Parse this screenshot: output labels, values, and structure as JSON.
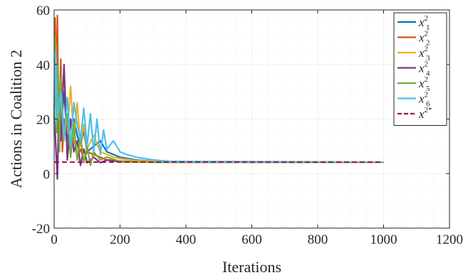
{
  "chart_data": {
    "type": "line",
    "xlabel": "Iterations",
    "ylabel": "Actions in Coalition 2",
    "xlim": [
      0,
      1200
    ],
    "ylim": [
      -20,
      60
    ],
    "xticks": [
      0,
      200,
      400,
      600,
      800,
      1000,
      1200
    ],
    "yticks": [
      -20,
      0,
      20,
      40,
      60
    ],
    "xtick_labels": [
      "0",
      "200",
      "400",
      "600",
      "800",
      "1000",
      "1200"
    ],
    "ytick_labels": [
      "-20",
      "0",
      "20",
      "40",
      "60"
    ],
    "grid": "major and minor, dotted",
    "legend_position": "top-right",
    "equilibrium_value": 4.2,
    "x_end": 1000,
    "series": [
      {
        "name": "x",
        "sub": "1",
        "sup": "2",
        "color": "#0072BD",
        "style": "solid",
        "x": [
          0,
          5,
          10,
          20,
          30,
          40,
          50,
          60,
          70,
          80,
          90,
          100,
          120,
          140,
          160,
          180,
          200,
          250,
          300,
          350,
          400,
          500,
          1000
        ],
        "y": [
          22,
          35,
          28,
          15,
          30,
          12,
          18,
          20,
          14,
          10,
          16,
          8,
          10,
          12,
          8,
          7,
          6,
          5,
          4.5,
          4.3,
          4.2,
          4.2,
          4.2
        ]
      },
      {
        "name": "x",
        "sub": "2",
        "sup": "2",
        "color": "#D95319",
        "style": "solid",
        "x": [
          0,
          3,
          6,
          10,
          14,
          20,
          25,
          30,
          40,
          50,
          60,
          70,
          80,
          90,
          100,
          120,
          140,
          160,
          180,
          200,
          250,
          300,
          400,
          1000
        ],
        "y": [
          20,
          57,
          30,
          58,
          10,
          42,
          8,
          20,
          12,
          10,
          14,
          6,
          9,
          5,
          8,
          7,
          6,
          5,
          4.8,
          4.6,
          4.4,
          4.2,
          4.2,
          4.2
        ]
      },
      {
        "name": "x",
        "sub": "3",
        "sup": "2",
        "color": "#EDB120",
        "style": "solid",
        "x": [
          0,
          5,
          10,
          20,
          30,
          40,
          50,
          60,
          70,
          80,
          90,
          100,
          120,
          140,
          160,
          180,
          200,
          250,
          300,
          400,
          1000
        ],
        "y": [
          30,
          48,
          20,
          25,
          38,
          15,
          32,
          12,
          26,
          10,
          18,
          9,
          14,
          8,
          7,
          6,
          5.5,
          4.8,
          4.5,
          4.2,
          4.2
        ]
      },
      {
        "name": "x",
        "sub": "4",
        "sup": "2",
        "color": "#7E2F8E",
        "style": "solid",
        "x": [
          0,
          5,
          10,
          15,
          20,
          30,
          40,
          50,
          60,
          70,
          80,
          90,
          100,
          120,
          140,
          160,
          200,
          300,
          1000
        ],
        "y": [
          25,
          10,
          -2,
          28,
          12,
          40,
          5,
          20,
          8,
          12,
          3,
          9,
          4,
          6,
          4,
          5,
          4.3,
          4.2,
          4.2
        ]
      },
      {
        "name": "x",
        "sub": "5",
        "sup": "2",
        "color": "#77AC30",
        "style": "solid",
        "x": [
          0,
          4,
          8,
          12,
          16,
          20,
          30,
          40,
          50,
          60,
          70,
          80,
          90,
          100,
          110,
          120,
          140,
          160,
          200,
          300,
          1000
        ],
        "y": [
          18,
          50,
          15,
          40,
          8,
          35,
          12,
          22,
          6,
          18,
          5,
          14,
          4,
          10,
          3,
          8,
          5,
          6,
          4.5,
          4.2,
          4.2
        ]
      },
      {
        "name": "x",
        "sub": "6",
        "sup": "2",
        "color": "#4DBEEE",
        "style": "solid",
        "x": [
          0,
          5,
          10,
          20,
          30,
          40,
          50,
          60,
          70,
          80,
          90,
          100,
          110,
          120,
          130,
          140,
          150,
          160,
          180,
          200,
          220,
          250,
          300,
          350,
          1000
        ],
        "y": [
          15,
          45,
          20,
          30,
          12,
          28,
          10,
          26,
          18,
          12,
          24,
          10,
          22,
          8,
          20,
          7,
          16,
          9,
          12,
          8,
          7,
          6,
          5,
          4.5,
          4.2
        ]
      },
      {
        "name": "x",
        "sub": "",
        "sup": "2*",
        "color": "#A2142F",
        "style": "dashed",
        "x": [
          0,
          1000
        ],
        "y": [
          4.2,
          4.2
        ]
      }
    ]
  }
}
